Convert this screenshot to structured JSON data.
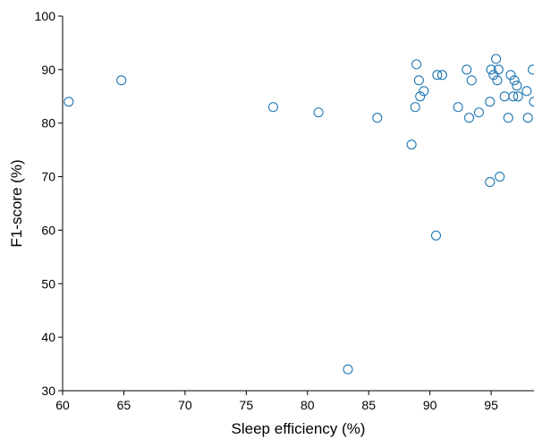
{
  "chart_data": {
    "type": "scatter",
    "title": "",
    "xlabel": "Sleep efficiency (%)",
    "ylabel": "F1-score (%)",
    "xlim": [
      60,
      98.5
    ],
    "ylim": [
      30,
      100
    ],
    "xticks": [
      60,
      65,
      70,
      75,
      80,
      85,
      90,
      95
    ],
    "yticks": [
      30,
      40,
      50,
      60,
      70,
      80,
      90,
      100
    ],
    "grid": false,
    "legend": "none",
    "marker": "open-circle",
    "marker_color": "#1f77b4",
    "series": [
      {
        "points": [
          [
            60.5,
            84
          ],
          [
            64.8,
            88
          ],
          [
            77.2,
            83
          ],
          [
            80.9,
            82
          ],
          [
            83.3,
            34
          ],
          [
            85.7,
            81
          ],
          [
            88.5,
            76
          ],
          [
            88.8,
            83
          ],
          [
            88.9,
            91
          ],
          [
            89.1,
            88
          ],
          [
            89.2,
            85
          ],
          [
            89.5,
            86
          ],
          [
            90.5,
            59
          ],
          [
            90.6,
            89
          ],
          [
            91.0,
            89
          ],
          [
            92.3,
            83
          ],
          [
            93.0,
            90
          ],
          [
            93.2,
            81
          ],
          [
            93.4,
            88
          ],
          [
            94.0,
            82
          ],
          [
            94.9,
            84
          ],
          [
            94.9,
            69
          ],
          [
            95.0,
            90
          ],
          [
            95.2,
            89
          ],
          [
            95.4,
            92
          ],
          [
            95.5,
            88
          ],
          [
            95.6,
            90
          ],
          [
            95.7,
            70
          ],
          [
            96.1,
            85
          ],
          [
            96.4,
            81
          ],
          [
            96.6,
            89
          ],
          [
            96.8,
            85
          ],
          [
            96.9,
            88
          ],
          [
            97.1,
            87
          ],
          [
            97.2,
            85
          ],
          [
            97.9,
            86
          ],
          [
            98.0,
            81
          ],
          [
            98.4,
            90
          ],
          [
            98.5,
            84
          ]
        ]
      }
    ]
  }
}
